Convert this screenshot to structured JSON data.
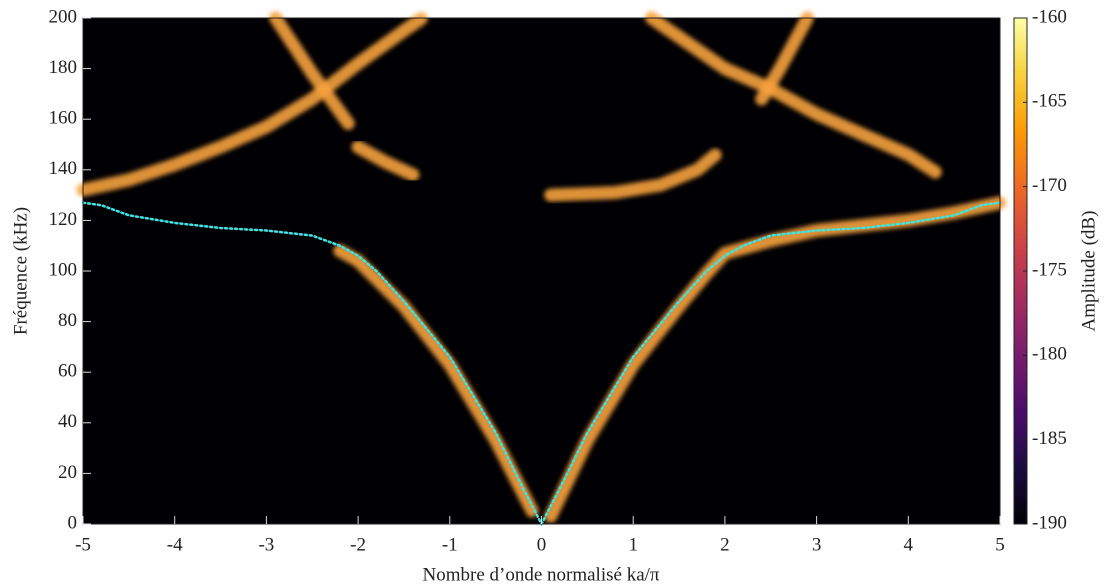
{
  "chart_data": {
    "type": "line",
    "xlabel": "Nombre d’onde normalisé ka/π",
    "ylabel": "Fréquence (kHz)",
    "xlim": [
      -5,
      5
    ],
    "xticks": [
      -5,
      -4,
      -3,
      -2,
      -1,
      0,
      1,
      2,
      3,
      4,
      5
    ],
    "ylim": [
      0,
      200
    ],
    "yticks": [
      0,
      20,
      40,
      60,
      80,
      100,
      120,
      140,
      160,
      180,
      200
    ],
    "background": "#000004",
    "series": [
      {
        "color": "#3fe3e0",
        "style": "dotted",
        "x": [
          -5,
          -4.8,
          -4.5,
          -4,
          -3.5,
          -3,
          -2.5,
          -2.2,
          -2,
          -1.8,
          -1.5,
          -1,
          -0.5,
          -0.2,
          0,
          0.2,
          0.5,
          1,
          1.5,
          1.8,
          2,
          2.2,
          2.5,
          3,
          3.5,
          4,
          4.5,
          4.8,
          5
        ],
        "values": [
          127,
          126,
          122,
          119,
          117,
          116,
          114,
          110,
          106,
          100,
          88,
          66,
          36,
          14,
          0,
          14,
          36,
          66,
          88,
          100,
          106,
          110,
          114,
          116,
          117,
          119,
          122,
          126,
          127
        ]
      }
    ],
    "bands": {
      "color": "#f7a23c",
      "lines": [
        {
          "x": [
            -2.2,
            -2,
            -1.5,
            -1,
            -0.5,
            -0.1
          ],
          "values": [
            108,
            104,
            86,
            63,
            33,
            5
          ]
        },
        {
          "x": [
            0.1,
            0.5,
            1,
            1.5,
            1.8,
            2,
            2.5,
            3,
            3.5,
            4,
            4.5,
            5
          ],
          "values": [
            3,
            33,
            63,
            86,
            99,
            107,
            112,
            116,
            118,
            120,
            123,
            127
          ]
        },
        {
          "x": [
            -5,
            -4.5,
            -4,
            -3.5,
            -3,
            -2.5,
            -2,
            -1.5,
            -1.3
          ],
          "values": [
            132,
            136,
            142,
            149,
            157,
            168,
            182,
            195,
            200
          ]
        },
        {
          "x": [
            -2.9,
            -2.5,
            -2.3,
            -2.1
          ],
          "values": [
            200,
            178,
            168,
            158
          ]
        },
        {
          "x": [
            -2,
            -1.7,
            -1.4
          ],
          "values": [
            149,
            143,
            138
          ]
        },
        {
          "x": [
            0.1,
            0.8,
            1.3,
            1.7,
            1.9
          ],
          "values": [
            130,
            131,
            134,
            140,
            146
          ]
        },
        {
          "x": [
            2.4,
            2.6,
            2.9
          ],
          "values": [
            168,
            180,
            200
          ]
        },
        {
          "x": [
            1.2,
            1.6,
            2,
            2.5,
            3,
            3.5,
            4,
            4.3
          ],
          "values": [
            200,
            190,
            180,
            172,
            162,
            154,
            146,
            139
          ]
        }
      ]
    },
    "colorbar": {
      "label": "Amplitude (dB)",
      "clim": [
        -190,
        -160
      ],
      "ticks": [
        -160,
        -165,
        -170,
        -175,
        -180,
        -185,
        -190
      ],
      "colors": [
        "#000004",
        "#1b0c41",
        "#4a0c6b",
        "#781c6d",
        "#a52c60",
        "#cf4446",
        "#ed6925",
        "#fb9b06",
        "#f7d13d",
        "#fcffa4"
      ]
    }
  }
}
